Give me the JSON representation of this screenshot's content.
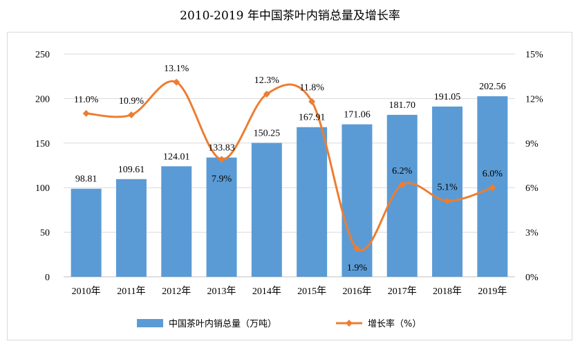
{
  "chart_data": {
    "type": "bar",
    "title": "2010-2019 年中国茶叶内销总量及增长率",
    "categories": [
      "2010年",
      "2011年",
      "2012年",
      "2013年",
      "2014年",
      "2015年",
      "2016年",
      "2017年",
      "2018年",
      "2019年"
    ],
    "series": [
      {
        "name": "中国茶叶内销总量（万吨）",
        "type": "bar",
        "axis": "left",
        "values": [
          98.81,
          109.61,
          124.01,
          133.83,
          150.25,
          167.91,
          171.06,
          181.7,
          191.05,
          202.56
        ],
        "labels": [
          "98.81",
          "109.61",
          "124.01",
          "133.83",
          "150.25",
          "167.91",
          "171.06",
          "181.70",
          "191.05",
          "202.56"
        ],
        "color": "#5b9bd5"
      },
      {
        "name": "增长率（%）",
        "type": "line",
        "axis": "right",
        "values": [
          11.0,
          10.9,
          13.1,
          7.9,
          12.3,
          11.8,
          1.9,
          6.2,
          5.1,
          6.0
        ],
        "labels": [
          "11.0%",
          "10.9%",
          "13.1%",
          "7.9%",
          "12.3%",
          "11.8%",
          "1.9%",
          "6.2%",
          "5.1%",
          "6.0%"
        ],
        "color": "#ed7d31",
        "marker": "diamond",
        "smooth": true
      }
    ],
    "y_left": {
      "min": 0,
      "max": 250,
      "ticks": [
        "0",
        "50",
        "100",
        "150",
        "200",
        "250"
      ]
    },
    "y_right": {
      "min": 0,
      "max": 15,
      "ticks": [
        "0%",
        "3%",
        "6%",
        "9%",
        "12%",
        "15%"
      ]
    },
    "grid": true,
    "legend_position": "bottom"
  }
}
